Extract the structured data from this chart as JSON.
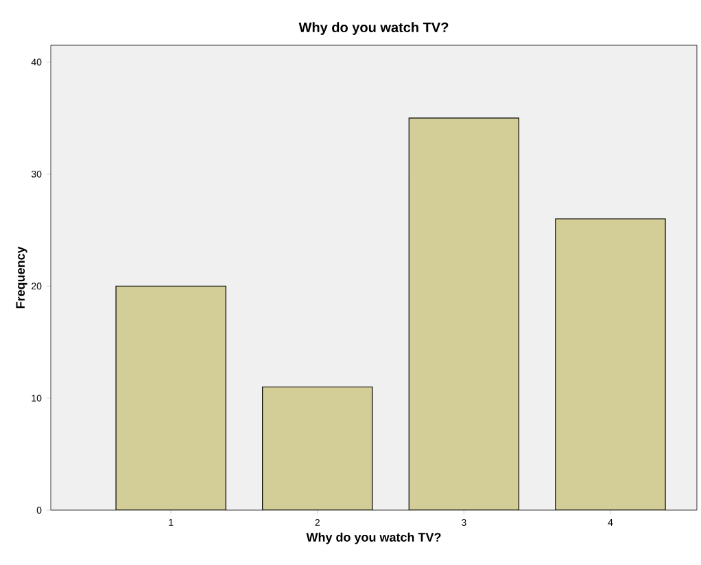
{
  "chart_data": {
    "type": "bar",
    "title": "Why do you watch TV?",
    "xlabel": "Why do you watch TV?",
    "ylabel": "Frequency",
    "categories": [
      "1",
      "2",
      "3",
      "4"
    ],
    "values": [
      20,
      11,
      35,
      26
    ],
    "color": "#d3ce97",
    "ylim": [
      0,
      41.5
    ],
    "yticks": [
      0,
      10,
      20,
      30,
      40
    ],
    "grid": false
  }
}
